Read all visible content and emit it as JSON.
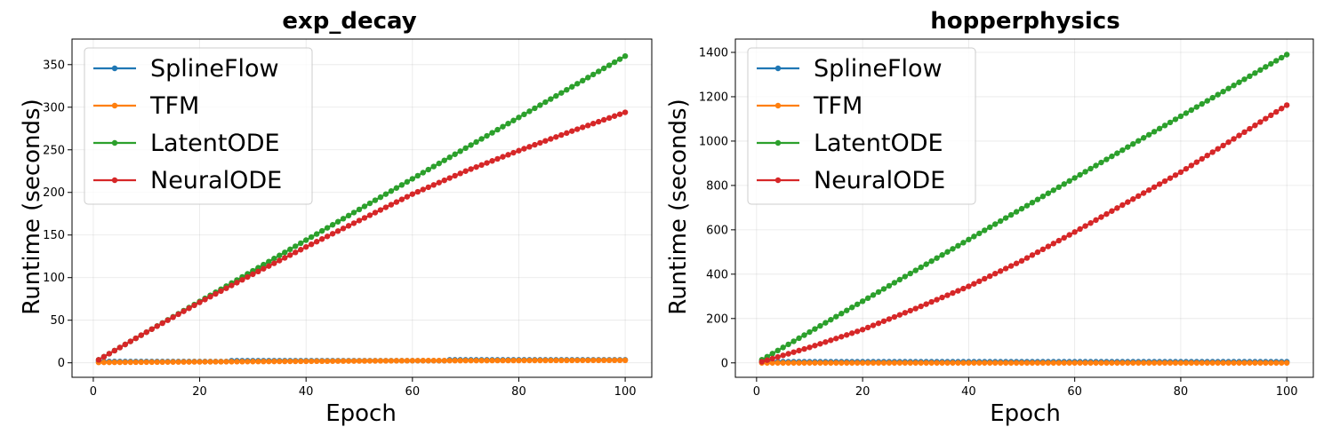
{
  "chart_data": [
    {
      "type": "line",
      "title": "exp_decay",
      "xlabel": "Epoch",
      "ylabel": "Runtime (seconds)",
      "xlim": [
        -4,
        105
      ],
      "ylim": [
        -17,
        380
      ],
      "xticks": [
        0,
        20,
        40,
        60,
        80,
        100
      ],
      "yticks": [
        0,
        50,
        100,
        150,
        200,
        250,
        300,
        350
      ],
      "grid": true,
      "legend": "top-left",
      "x": {
        "start": 1,
        "end": 100,
        "step": 1
      },
      "series": [
        {
          "name": "SplineFlow",
          "color": "#1f77b4",
          "anchors": [
            [
              1,
              1.5
            ],
            [
              25,
              1.5
            ],
            [
              26,
              2.5
            ],
            [
              66,
              2.5
            ],
            [
              67,
              3.5
            ],
            [
              100,
              3.5
            ]
          ]
        },
        {
          "name": "TFM",
          "color": "#ff7f0e",
          "anchors": [
            [
              1,
              0.5
            ],
            [
              30,
              1.5
            ],
            [
              60,
              2.5
            ],
            [
              100,
              3.0
            ]
          ]
        },
        {
          "name": "LatentODE",
          "color": "#2ca02c",
          "anchors": [
            [
              1,
              3.5
            ],
            [
              10,
              36
            ],
            [
              20,
              72
            ],
            [
              30,
              108
            ],
            [
              40,
              144
            ],
            [
              50,
              180
            ],
            [
              60,
              216
            ],
            [
              70,
              252
            ],
            [
              80,
              288
            ],
            [
              90,
              324
            ],
            [
              100,
              360
            ]
          ]
        },
        {
          "name": "NeuralODE",
          "color": "#d62728",
          "anchors": [
            [
              1,
              3.5
            ],
            [
              10,
              36
            ],
            [
              20,
              71
            ],
            [
              30,
              104
            ],
            [
              40,
              136
            ],
            [
              50,
              167
            ],
            [
              60,
              198
            ],
            [
              70,
              225
            ],
            [
              80,
              249
            ],
            [
              90,
              272
            ],
            [
              100,
              294
            ]
          ]
        }
      ]
    },
    {
      "type": "line",
      "title": "hopperphysics",
      "xlabel": "Epoch",
      "ylabel": "Runtime (seconds)",
      "xlim": [
        -4,
        105
      ],
      "ylim": [
        -65,
        1460
      ],
      "xticks": [
        0,
        20,
        40,
        60,
        80,
        100
      ],
      "yticks": [
        0,
        200,
        400,
        600,
        800,
        1000,
        1200,
        1400
      ],
      "grid": true,
      "legend": "top-left",
      "x": {
        "start": 1,
        "end": 100,
        "step": 1
      },
      "series": [
        {
          "name": "SplineFlow",
          "color": "#1f77b4",
          "anchors": [
            [
              1,
              5
            ],
            [
              100,
              5
            ]
          ]
        },
        {
          "name": "TFM",
          "color": "#ff7f0e",
          "anchors": [
            [
              1,
              0
            ],
            [
              100,
              0
            ]
          ]
        },
        {
          "name": "LatentODE",
          "color": "#2ca02c",
          "anchors": [
            [
              1,
              14
            ],
            [
              10,
              139
            ],
            [
              20,
              278
            ],
            [
              30,
              417
            ],
            [
              40,
              556
            ],
            [
              50,
              695
            ],
            [
              60,
              834
            ],
            [
              70,
              973
            ],
            [
              80,
              1112
            ],
            [
              90,
              1251
            ],
            [
              100,
              1390
            ]
          ]
        },
        {
          "name": "NeuralODE",
          "color": "#d62728",
          "anchors": [
            [
              1,
              5
            ],
            [
              10,
              70
            ],
            [
              20,
              150
            ],
            [
              30,
              245
            ],
            [
              40,
              345
            ],
            [
              50,
              460
            ],
            [
              60,
              590
            ],
            [
              70,
              725
            ],
            [
              80,
              860
            ],
            [
              90,
              1010
            ],
            [
              100,
              1162
            ]
          ]
        }
      ]
    }
  ]
}
